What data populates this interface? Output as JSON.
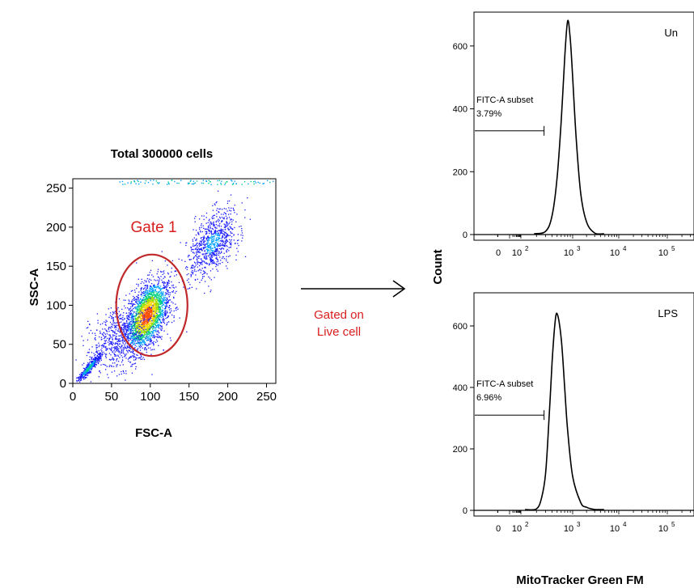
{
  "colors": {
    "gate": "#c0282a",
    "annotation": "#d81e1e",
    "density": [
      "#1a1aff",
      "#00a0ff",
      "#00d080",
      "#9bdc00",
      "#ffd200",
      "#ff5000"
    ]
  },
  "scatter_panel": {
    "title": "Total 300000 cells",
    "xlabel": "FSC-A",
    "ylabel": "SSC-A",
    "x_ticks": [
      "0",
      "50",
      "100",
      "150",
      "200",
      "250"
    ],
    "y_ticks": [
      "0",
      "50",
      "100",
      "150",
      "200",
      "250"
    ],
    "gate_label": "Gate 1"
  },
  "arrow_annotation": {
    "line1": "Gated on",
    "line2": "Live cell"
  },
  "histogram_shared": {
    "ylabel": "Count",
    "xlabel": "MitoTracker Green FM",
    "y_ticks": [
      "0",
      "200",
      "400",
      "600"
    ],
    "x_tick_zero": "0",
    "x_tick_base": "10",
    "x_tick_exponents": [
      "2",
      "3",
      "4",
      "5"
    ]
  },
  "histograms": [
    {
      "sample": "Un",
      "subset_label": "FITC-A subset",
      "subset_percent": "3.79%"
    },
    {
      "sample": "LPS",
      "subset_label": "FITC-A subset",
      "subset_percent": "6.96%"
    }
  ],
  "chart_data": [
    {
      "type": "scatter",
      "title": "Total 300000 cells",
      "xlabel": "FSC-A",
      "ylabel": "SSC-A",
      "xlim": [
        0,
        262
      ],
      "ylim": [
        0,
        262
      ],
      "x_ticks": [
        0,
        50,
        100,
        150,
        200,
        250
      ],
      "y_ticks": [
        0,
        50,
        100,
        150,
        200,
        250
      ],
      "density_clusters": [
        {
          "center": [
            95,
            87
          ],
          "spread": [
            20,
            32
          ],
          "weight": 0.55
        },
        {
          "center": [
            180,
            180
          ],
          "spread": [
            22,
            30
          ],
          "weight": 0.2
        },
        {
          "center": [
            60,
            60
          ],
          "spread": [
            30,
            30
          ],
          "weight": 0.15
        },
        {
          "center": [
            20,
            20
          ],
          "spread": [
            10,
            10
          ],
          "weight": 0.1
        }
      ],
      "gate": {
        "name": "Gate 1",
        "center": [
          102,
          100
        ],
        "radius_x": 46,
        "radius_y": 65,
        "rotation_deg": 0
      }
    },
    {
      "type": "line",
      "title": "Un",
      "xlabel": "MitoTracker Green FM",
      "ylabel": "Count",
      "x_scale": "log",
      "ylim": [
        0,
        700
      ],
      "y_ticks": [
        0,
        200,
        400,
        600
      ],
      "x": [
        300,
        400,
        500,
        600,
        700,
        800,
        900,
        1000,
        1200,
        1500,
        2000,
        3000
      ],
      "y": [
        10,
        60,
        180,
        360,
        560,
        680,
        620,
        500,
        300,
        130,
        40,
        5
      ],
      "gate": {
        "label": "FITC-A subset",
        "percent": 3.79,
        "range": [
          -1000,
          280
        ],
        "level": 330
      }
    },
    {
      "type": "line",
      "title": "LPS",
      "xlabel": "MitoTracker Green FM",
      "ylabel": "Count",
      "x_scale": "log",
      "ylim": [
        0,
        700
      ],
      "y_ticks": [
        0,
        200,
        400,
        600
      ],
      "x": [
        200,
        250,
        300,
        350,
        400,
        450,
        500,
        600,
        700,
        800,
        1000,
        1500,
        2000,
        3000
      ],
      "y": [
        5,
        40,
        120,
        300,
        480,
        600,
        640,
        560,
        400,
        260,
        110,
        25,
        10,
        3
      ],
      "gate": {
        "label": "FITC-A subset",
        "percent": 6.96,
        "range": [
          -1000,
          280
        ],
        "level": 310
      }
    }
  ]
}
